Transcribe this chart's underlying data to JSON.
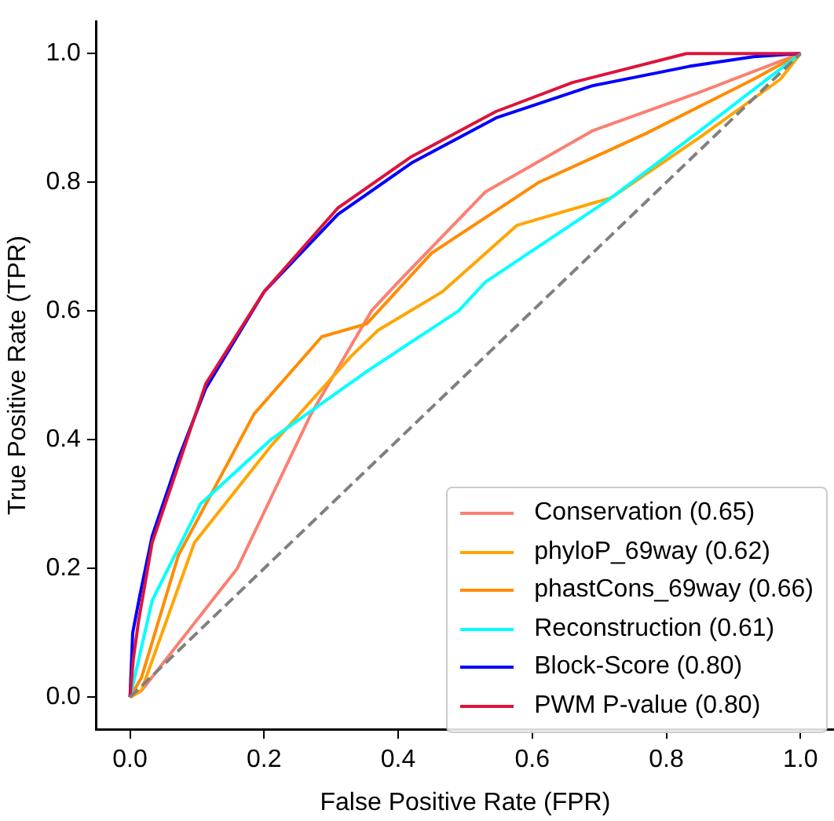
{
  "chart_data": {
    "type": "line",
    "xlabel": "False Positive Rate (FPR)",
    "ylabel": "True Positive Rate (TPR)",
    "xlim": [
      -0.05,
      1.05
    ],
    "ylim": [
      -0.05,
      1.05
    ],
    "xticks": [
      {
        "value": 0,
        "label": "0.0"
      },
      {
        "value": 0.2,
        "label": "0.2"
      },
      {
        "value": 0.4,
        "label": "0.4"
      },
      {
        "value": 0.6,
        "label": "0.6"
      },
      {
        "value": 0.8,
        "label": "0.8"
      },
      {
        "value": 1,
        "label": "1.0"
      }
    ],
    "yticks": [
      {
        "value": 0,
        "label": "0.0"
      },
      {
        "value": 0.2,
        "label": "0.2"
      },
      {
        "value": 0.4,
        "label": "0.4"
      },
      {
        "value": 0.6,
        "label": "0.6"
      },
      {
        "value": 0.8,
        "label": "0.8"
      },
      {
        "value": 1,
        "label": "1.0"
      }
    ],
    "grid": false,
    "legend": "bottom right",
    "marker": "none",
    "line_style": "solid",
    "series": [
      {
        "name": "Conservation (0.65)",
        "color": "#fa8072",
        "x": [
          0,
          0.017,
          0.16,
          0.27,
          0.36,
          0.4,
          0.53,
          0.69,
          0.85,
          1
        ],
        "values": [
          0,
          0.01,
          0.2,
          0.44,
          0.6,
          0.645,
          0.785,
          0.88,
          0.94,
          1
        ]
      },
      {
        "name": "phyloP_69way (0.62)",
        "color": "#ffa500",
        "x": [
          0,
          0.017,
          0.096,
          0.21,
          0.33,
          0.37,
          0.466,
          0.577,
          0.718,
          0.85,
          0.97,
          1
        ],
        "values": [
          0,
          0.01,
          0.24,
          0.39,
          0.53,
          0.57,
          0.63,
          0.733,
          0.776,
          0.87,
          0.96,
          1
        ]
      },
      {
        "name": "phastCons_69way (0.66)",
        "color": "#ff8c00",
        "x": [
          0,
          0.017,
          0.072,
          0.185,
          0.286,
          0.353,
          0.45,
          0.61,
          0.77,
          0.93,
          1
        ],
        "values": [
          0,
          0.03,
          0.22,
          0.44,
          0.56,
          0.58,
          0.69,
          0.8,
          0.876,
          0.96,
          1
        ]
      },
      {
        "name": "Reconstruction (0.61)",
        "color": "#00ffff",
        "x": [
          0,
          0.01,
          0.033,
          0.105,
          0.21,
          0.353,
          0.49,
          0.53,
          0.714,
          0.85,
          1
        ],
        "values": [
          0,
          0.045,
          0.15,
          0.3,
          0.4,
          0.506,
          0.6,
          0.645,
          0.773,
          0.88,
          1
        ]
      },
      {
        "name": "Block-Score (0.80)",
        "color": "#0000ff",
        "x": [
          0,
          0.004,
          0.015,
          0.033,
          0.072,
          0.113,
          0.2,
          0.31,
          0.42,
          0.546,
          0.69,
          0.834,
          0.93,
          1
        ],
        "values": [
          0,
          0.1,
          0.16,
          0.25,
          0.37,
          0.48,
          0.63,
          0.75,
          0.83,
          0.9,
          0.95,
          0.98,
          0.995,
          1
        ]
      },
      {
        "name": "PWM P-value (0.80)",
        "color": "#dc143c",
        "x": [
          0,
          0.005,
          0.013,
          0.033,
          0.072,
          0.113,
          0.2,
          0.31,
          0.42,
          0.546,
          0.66,
          0.83,
          1
        ],
        "values": [
          0,
          0.06,
          0.12,
          0.24,
          0.36,
          0.487,
          0.63,
          0.76,
          0.84,
          0.91,
          0.955,
          1,
          1
        ]
      },
      {
        "color": "#808080",
        "line_style": "dashed",
        "x": [
          0,
          1
        ],
        "values": [
          0,
          1
        ]
      }
    ]
  }
}
